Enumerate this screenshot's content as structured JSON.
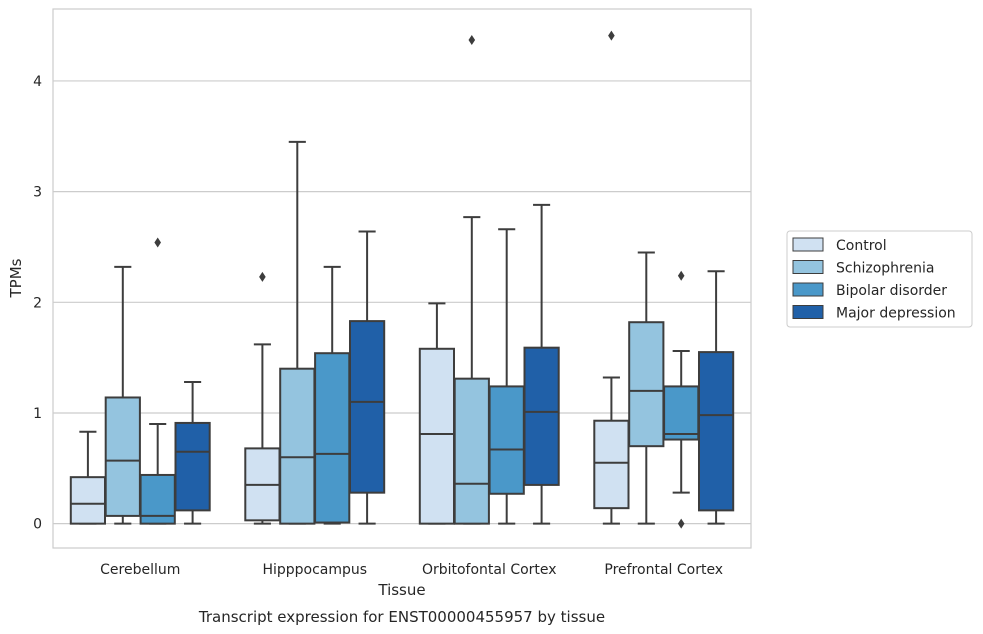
{
  "caption": "Transcript expression for ENST00000455957 by tissue",
  "chart_data": {
    "type": "boxplot",
    "xlabel": "Tissue",
    "ylabel": "TPMs",
    "ylim": [
      -0.22,
      4.65
    ],
    "yticks": [
      0,
      1,
      2,
      3,
      4
    ],
    "grid": "horizontal",
    "legend_position": "right",
    "categories": [
      "Cerebellum",
      "Hipppocampus",
      "Orbitofontal Cortex",
      "Prefrontal Cortex"
    ],
    "series": [
      {
        "name": "Control",
        "color": "#d0e1f2",
        "boxes": [
          {
            "whislo": 0.0,
            "q1": 0.0,
            "med": 0.18,
            "q3": 0.42,
            "whishi": 0.83,
            "fliers": []
          },
          {
            "whislo": 0.0,
            "q1": 0.03,
            "med": 0.35,
            "q3": 0.68,
            "whishi": 1.62,
            "fliers": [
              2.23
            ]
          },
          {
            "whislo": 0.0,
            "q1": 0.0,
            "med": 0.81,
            "q3": 1.58,
            "whishi": 1.99,
            "fliers": []
          },
          {
            "whislo": 0.0,
            "q1": 0.14,
            "med": 0.55,
            "q3": 0.93,
            "whishi": 1.32,
            "fliers": [
              4.41
            ]
          }
        ]
      },
      {
        "name": "Schizophrenia",
        "color": "#94c4df",
        "boxes": [
          {
            "whislo": 0.0,
            "q1": 0.07,
            "med": 0.57,
            "q3": 1.14,
            "whishi": 2.32,
            "fliers": []
          },
          {
            "whislo": 0.0,
            "q1": 0.0,
            "med": 0.6,
            "q3": 1.4,
            "whishi": 3.45,
            "fliers": []
          },
          {
            "whislo": 0.0,
            "q1": 0.0,
            "med": 0.36,
            "q3": 1.31,
            "whishi": 2.77,
            "fliers": [
              4.37
            ]
          },
          {
            "whislo": 0.0,
            "q1": 0.7,
            "med": 1.2,
            "q3": 1.82,
            "whishi": 2.45,
            "fliers": []
          }
        ]
      },
      {
        "name": "Bipolar disorder",
        "color": "#4a98c9",
        "boxes": [
          {
            "whislo": 0.0,
            "q1": 0.0,
            "med": 0.07,
            "q3": 0.44,
            "whishi": 0.9,
            "fliers": [
              2.54
            ]
          },
          {
            "whislo": 0.0,
            "q1": 0.01,
            "med": 0.63,
            "q3": 1.54,
            "whishi": 2.32,
            "fliers": []
          },
          {
            "whislo": 0.0,
            "q1": 0.27,
            "med": 0.67,
            "q3": 1.24,
            "whishi": 2.66,
            "fliers": []
          },
          {
            "whislo": 0.28,
            "q1": 0.76,
            "med": 0.81,
            "q3": 1.24,
            "whishi": 1.56,
            "fliers": [
              2.24,
              0.0
            ]
          }
        ]
      },
      {
        "name": "Major depression",
        "color": "#2060a8",
        "boxes": [
          {
            "whislo": 0.0,
            "q1": 0.12,
            "med": 0.65,
            "q3": 0.91,
            "whishi": 1.28,
            "fliers": []
          },
          {
            "whislo": 0.0,
            "q1": 0.28,
            "med": 1.1,
            "q3": 1.83,
            "whishi": 2.64,
            "fliers": []
          },
          {
            "whislo": 0.0,
            "q1": 0.35,
            "med": 1.01,
            "q3": 1.59,
            "whishi": 2.88,
            "fliers": []
          },
          {
            "whislo": 0.0,
            "q1": 0.12,
            "med": 0.98,
            "q3": 1.55,
            "whishi": 2.28,
            "fliers": []
          }
        ]
      }
    ]
  }
}
